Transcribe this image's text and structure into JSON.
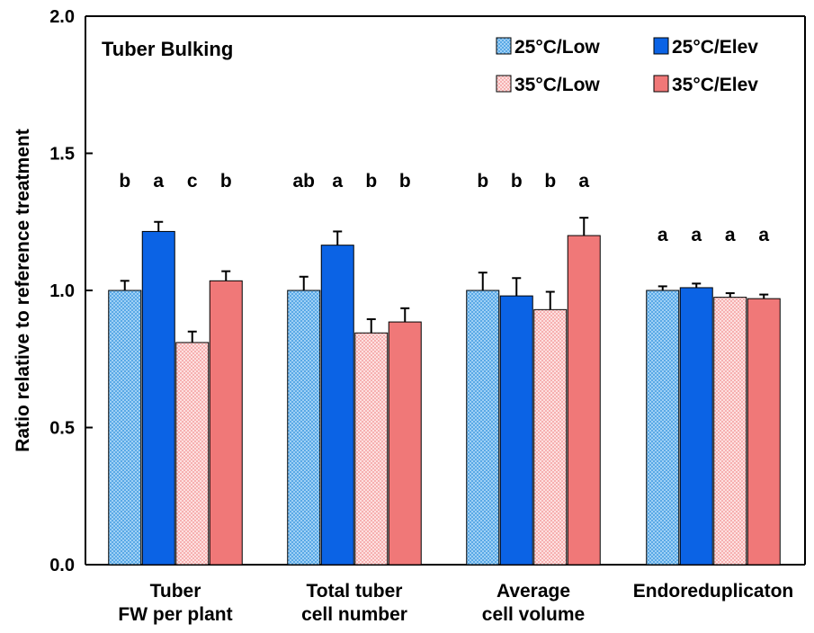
{
  "chart_data": {
    "type": "bar",
    "title": "Tuber Bulking",
    "xlabel": "",
    "ylabel": "Ratio relative to reference treatment",
    "ylim": [
      0,
      2.0
    ],
    "yticks": [
      "0.0",
      "0.5",
      "1.0",
      "1.5",
      "2.0"
    ],
    "categories": [
      [
        "Tuber",
        "FW per plant"
      ],
      [
        "Total tuber",
        "cell number"
      ],
      [
        "Average",
        "cell volume"
      ],
      [
        "Endoreduplicaton"
      ]
    ],
    "series": [
      {
        "name": "25°C/Low",
        "color": "#5aa9e6",
        "pattern": "dotted",
        "values": [
          1.0,
          1.0,
          1.0,
          1.0
        ],
        "errors": [
          0.035,
          0.05,
          0.065,
          0.015
        ],
        "letters": [
          "b",
          "ab",
          "b",
          "a"
        ]
      },
      {
        "name": "25°C/Elev",
        "color": "#0b63e5",
        "pattern": "solid",
        "values": [
          1.215,
          1.165,
          0.98,
          1.01
        ],
        "errors": [
          0.035,
          0.05,
          0.065,
          0.015
        ],
        "letters": [
          "a",
          "a",
          "b",
          "a"
        ]
      },
      {
        "name": "35°C/Low",
        "color": "#f6b0b0",
        "pattern": "dotted",
        "values": [
          0.81,
          0.845,
          0.93,
          0.975
        ],
        "errors": [
          0.04,
          0.05,
          0.065,
          0.015
        ],
        "letters": [
          "c",
          "b",
          "b",
          "a"
        ]
      },
      {
        "name": "35°C/Elev",
        "color": "#f07878",
        "pattern": "solid",
        "values": [
          1.035,
          0.885,
          1.2,
          0.97
        ],
        "errors": [
          0.035,
          0.05,
          0.065,
          0.015
        ],
        "letters": [
          "b",
          "b",
          "a",
          "a"
        ]
      }
    ],
    "legend_position": "top-right",
    "grid": false
  }
}
